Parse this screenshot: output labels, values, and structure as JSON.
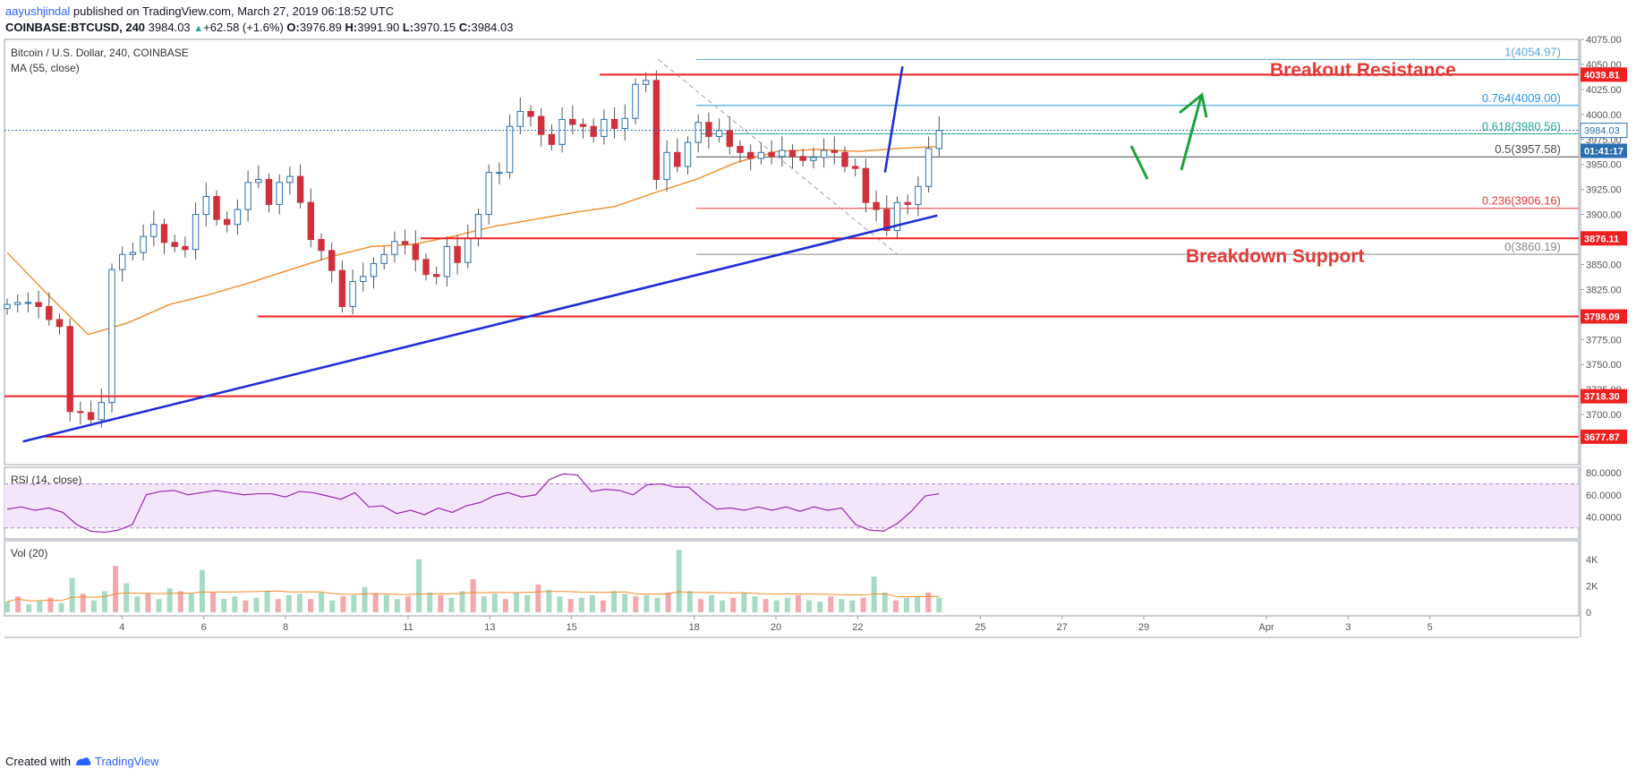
{
  "header": {
    "author": "aayushjindal",
    "published": "published on TradingView.com, March 27, 2019 06:18:52 UTC",
    "symbol": "COINBASE:BTCUSD, 240",
    "last": "3984.03",
    "change": "+62.58 (+1.6%)",
    "o_label": "O:",
    "o": "3976.89",
    "h_label": "H:",
    "h": "3991.90",
    "l_label": "L:",
    "l": "3970.15",
    "c_label": "C:",
    "c": "3984.03"
  },
  "footer": {
    "created_with": "Created with",
    "brand": "TradingView"
  },
  "chart_data": {
    "type": "candlestick",
    "title": "Bitcoin / U.S. Dollar, 240, COINBASE",
    "indicator_label": "MA (55, close)",
    "ylim": [
      3650,
      4075
    ],
    "y_ticks": [
      "4075.00",
      "4050.00",
      "4025.00",
      "4000.00",
      "3975.00",
      "3950.00",
      "3925.00",
      "3900.00",
      "3875.00",
      "3850.00",
      "3825.00",
      "3800.00",
      "3775.00",
      "3750.00",
      "3725.00",
      "3700.00",
      "3675.00"
    ],
    "x_ticks": [
      {
        "t": 4,
        "label": "4"
      },
      {
        "t": 8,
        "label": "6"
      },
      {
        "t": 12,
        "label": "8"
      },
      {
        "t": 18,
        "label": "11"
      },
      {
        "t": 22,
        "label": "13"
      },
      {
        "t": 26,
        "label": "15"
      },
      {
        "t": 32,
        "label": "18"
      },
      {
        "t": 36,
        "label": "20"
      },
      {
        "t": 40,
        "label": "22"
      },
      {
        "t": 46,
        "label": "25"
      },
      {
        "t": 50,
        "label": "27"
      },
      {
        "t": 54,
        "label": "29"
      },
      {
        "t": 60,
        "label": "Apr"
      },
      {
        "t": 64,
        "label": "3"
      },
      {
        "t": 68,
        "label": "5"
      }
    ],
    "x_range": [
      0,
      72
    ],
    "closes": [
      3810,
      3812,
      3812,
      3808,
      3795,
      3788,
      3703,
      3702,
      3695,
      3712,
      3845,
      3860,
      3862,
      3878,
      3890,
      3872,
      3868,
      3865,
      3900,
      3918,
      3895,
      3890,
      3905,
      3932,
      3935,
      3910,
      3932,
      3938,
      3912,
      3875,
      3864,
      3844,
      3808,
      3833,
      3838,
      3851,
      3860,
      3873,
      3870,
      3855,
      3840,
      3838,
      3868,
      3852,
      3876,
      3900,
      3942,
      3942,
      3988,
      4003,
      3998,
      3980,
      3970,
      3995,
      3990,
      3988,
      3978,
      3995,
      3986,
      3996,
      4030,
      4034,
      3935,
      3962,
      3948,
      3972,
      3992,
      3978,
      3984,
      3968,
      3962,
      3956,
      3962,
      3958,
      3964,
      3958,
      3954,
      3957,
      3964,
      3962,
      3948,
      3946,
      3912,
      3905,
      3884,
      3912,
      3910,
      3928,
      3966,
      3984
    ],
    "ma55": [
      3862,
      3820,
      3780,
      3792,
      3810,
      3820,
      3832,
      3845,
      3858,
      3868,
      3870,
      3878,
      3888,
      3895,
      3902,
      3908,
      3922,
      3935,
      3952,
      3963,
      3965,
      3963,
      3966,
      3968
    ],
    "horizontal_levels": [
      {
        "label": "4039.81",
        "value": 4039.81
      },
      {
        "label": "3876.11",
        "value": 3876.11
      },
      {
        "label": "3798.09",
        "value": 3798.09
      },
      {
        "label": "3718.30",
        "value": 3718.3
      },
      {
        "label": "3677.87",
        "value": 3677.87
      }
    ],
    "price_tags": [
      {
        "label": "3984.03",
        "value": 3984.03
      },
      {
        "label": "01:41:17",
        "value": 3969
      }
    ],
    "fibonacci": [
      {
        "label": "1(4054.97)",
        "value": 4054.97
      },
      {
        "label": "0.764(4009.00)",
        "value": 4009.0
      },
      {
        "label": "0.618(3980.56)",
        "value": 3980.56
      },
      {
        "label": "0.5(3957.58)",
        "value": 3957.58
      },
      {
        "label": "0.236(3906.16)",
        "value": 3906.16
      },
      {
        "label": "0(3860.19)",
        "value": 3860.19
      }
    ],
    "trendlines": [
      {
        "name": "support",
        "from": [
          1,
          3673
        ],
        "to": [
          53,
          3899
        ]
      },
      {
        "name": "resistance",
        "from": [
          37,
          4048
        ],
        "to": [
          50,
          3942
        ]
      }
    ],
    "annotations": [
      "Breakout Resistance",
      "Breakdown Support"
    ],
    "rsi": {
      "label": "RSI (14, close)",
      "ylim": [
        20,
        85
      ],
      "ticks": [
        "80.0000",
        "60.0000",
        "40.0000"
      ],
      "bands": [
        70,
        30
      ],
      "values": [
        47,
        49,
        46,
        48,
        44,
        33,
        27,
        26,
        28,
        33,
        60,
        63,
        64,
        60,
        62,
        64,
        62,
        60,
        61,
        61,
        58,
        63,
        62,
        59,
        56,
        62,
        49,
        50,
        43,
        46,
        42,
        48,
        44,
        50,
        53,
        59,
        62,
        58,
        60,
        74,
        79,
        78,
        63,
        65,
        64,
        60,
        69,
        70,
        67,
        67,
        56,
        47,
        48,
        46,
        49,
        46,
        49,
        45,
        49,
        46,
        48,
        33,
        28,
        27,
        34,
        45,
        59,
        61
      ]
    },
    "volume": {
      "label": "Vol (20)",
      "ylim": [
        0,
        5000
      ],
      "ticks": [
        "4K",
        "2K",
        "0"
      ],
      "values": [
        800,
        1200,
        600,
        900,
        1100,
        700,
        2600,
        1400,
        900,
        1600,
        3500,
        2200,
        1200,
        1400,
        1000,
        1800,
        1600,
        1400,
        3200,
        1500,
        1000,
        1200,
        900,
        1100,
        1600,
        1000,
        1300,
        1400,
        1000,
        1500,
        900,
        1200,
        1300,
        1900,
        1400,
        1300,
        1000,
        1200,
        4000,
        1500,
        1300,
        1100,
        1600,
        2500,
        1200,
        1400,
        1000,
        1500,
        1300,
        2100,
        1700,
        1200,
        1000,
        1100,
        1300,
        900,
        1600,
        1400,
        1200,
        1300,
        1100,
        1500,
        4700,
        1600,
        1000,
        1300,
        900,
        1100,
        1500,
        1200,
        1000,
        900,
        1100,
        1300,
        900,
        800,
        1200,
        1000,
        900,
        1100,
        2700,
        1500,
        900,
        1100,
        1200,
        1500,
        1100
      ]
    }
  }
}
